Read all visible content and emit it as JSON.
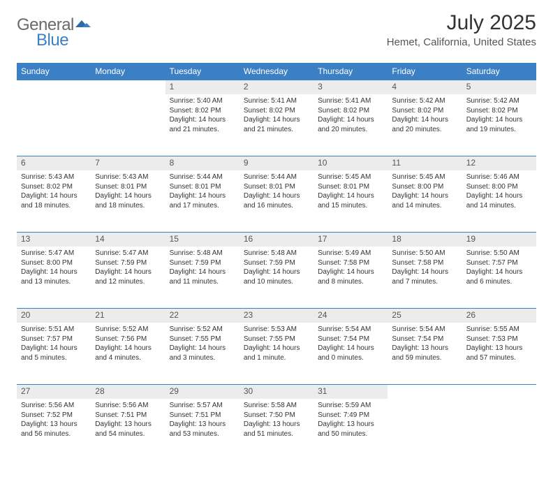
{
  "brand": {
    "text_general": "General",
    "text_blue": "Blue"
  },
  "title": {
    "month": "July 2025",
    "location": "Hemet, California, United States"
  },
  "colors": {
    "header_bg": "#3b7fc4",
    "header_text": "#ffffff",
    "daynum_bg": "#ececec",
    "row_divider": "#3b7fc4",
    "body_text": "#333333"
  },
  "weekdays": [
    "Sunday",
    "Monday",
    "Tuesday",
    "Wednesday",
    "Thursday",
    "Friday",
    "Saturday"
  ],
  "start_weekday_index": 2,
  "days": [
    {
      "n": 1,
      "sunrise": "5:40 AM",
      "sunset": "8:02 PM",
      "daylight": "14 hours and 21 minutes."
    },
    {
      "n": 2,
      "sunrise": "5:41 AM",
      "sunset": "8:02 PM",
      "daylight": "14 hours and 21 minutes."
    },
    {
      "n": 3,
      "sunrise": "5:41 AM",
      "sunset": "8:02 PM",
      "daylight": "14 hours and 20 minutes."
    },
    {
      "n": 4,
      "sunrise": "5:42 AM",
      "sunset": "8:02 PM",
      "daylight": "14 hours and 20 minutes."
    },
    {
      "n": 5,
      "sunrise": "5:42 AM",
      "sunset": "8:02 PM",
      "daylight": "14 hours and 19 minutes."
    },
    {
      "n": 6,
      "sunrise": "5:43 AM",
      "sunset": "8:02 PM",
      "daylight": "14 hours and 18 minutes."
    },
    {
      "n": 7,
      "sunrise": "5:43 AM",
      "sunset": "8:01 PM",
      "daylight": "14 hours and 18 minutes."
    },
    {
      "n": 8,
      "sunrise": "5:44 AM",
      "sunset": "8:01 PM",
      "daylight": "14 hours and 17 minutes."
    },
    {
      "n": 9,
      "sunrise": "5:44 AM",
      "sunset": "8:01 PM",
      "daylight": "14 hours and 16 minutes."
    },
    {
      "n": 10,
      "sunrise": "5:45 AM",
      "sunset": "8:01 PM",
      "daylight": "14 hours and 15 minutes."
    },
    {
      "n": 11,
      "sunrise": "5:45 AM",
      "sunset": "8:00 PM",
      "daylight": "14 hours and 14 minutes."
    },
    {
      "n": 12,
      "sunrise": "5:46 AM",
      "sunset": "8:00 PM",
      "daylight": "14 hours and 14 minutes."
    },
    {
      "n": 13,
      "sunrise": "5:47 AM",
      "sunset": "8:00 PM",
      "daylight": "14 hours and 13 minutes."
    },
    {
      "n": 14,
      "sunrise": "5:47 AM",
      "sunset": "7:59 PM",
      "daylight": "14 hours and 12 minutes."
    },
    {
      "n": 15,
      "sunrise": "5:48 AM",
      "sunset": "7:59 PM",
      "daylight": "14 hours and 11 minutes."
    },
    {
      "n": 16,
      "sunrise": "5:48 AM",
      "sunset": "7:59 PM",
      "daylight": "14 hours and 10 minutes."
    },
    {
      "n": 17,
      "sunrise": "5:49 AM",
      "sunset": "7:58 PM",
      "daylight": "14 hours and 8 minutes."
    },
    {
      "n": 18,
      "sunrise": "5:50 AM",
      "sunset": "7:58 PM",
      "daylight": "14 hours and 7 minutes."
    },
    {
      "n": 19,
      "sunrise": "5:50 AM",
      "sunset": "7:57 PM",
      "daylight": "14 hours and 6 minutes."
    },
    {
      "n": 20,
      "sunrise": "5:51 AM",
      "sunset": "7:57 PM",
      "daylight": "14 hours and 5 minutes."
    },
    {
      "n": 21,
      "sunrise": "5:52 AM",
      "sunset": "7:56 PM",
      "daylight": "14 hours and 4 minutes."
    },
    {
      "n": 22,
      "sunrise": "5:52 AM",
      "sunset": "7:55 PM",
      "daylight": "14 hours and 3 minutes."
    },
    {
      "n": 23,
      "sunrise": "5:53 AM",
      "sunset": "7:55 PM",
      "daylight": "14 hours and 1 minute."
    },
    {
      "n": 24,
      "sunrise": "5:54 AM",
      "sunset": "7:54 PM",
      "daylight": "14 hours and 0 minutes."
    },
    {
      "n": 25,
      "sunrise": "5:54 AM",
      "sunset": "7:54 PM",
      "daylight": "13 hours and 59 minutes."
    },
    {
      "n": 26,
      "sunrise": "5:55 AM",
      "sunset": "7:53 PM",
      "daylight": "13 hours and 57 minutes."
    },
    {
      "n": 27,
      "sunrise": "5:56 AM",
      "sunset": "7:52 PM",
      "daylight": "13 hours and 56 minutes."
    },
    {
      "n": 28,
      "sunrise": "5:56 AM",
      "sunset": "7:51 PM",
      "daylight": "13 hours and 54 minutes."
    },
    {
      "n": 29,
      "sunrise": "5:57 AM",
      "sunset": "7:51 PM",
      "daylight": "13 hours and 53 minutes."
    },
    {
      "n": 30,
      "sunrise": "5:58 AM",
      "sunset": "7:50 PM",
      "daylight": "13 hours and 51 minutes."
    },
    {
      "n": 31,
      "sunrise": "5:59 AM",
      "sunset": "7:49 PM",
      "daylight": "13 hours and 50 minutes."
    }
  ],
  "labels": {
    "sunrise": "Sunrise:",
    "sunset": "Sunset:",
    "daylight": "Daylight:"
  }
}
